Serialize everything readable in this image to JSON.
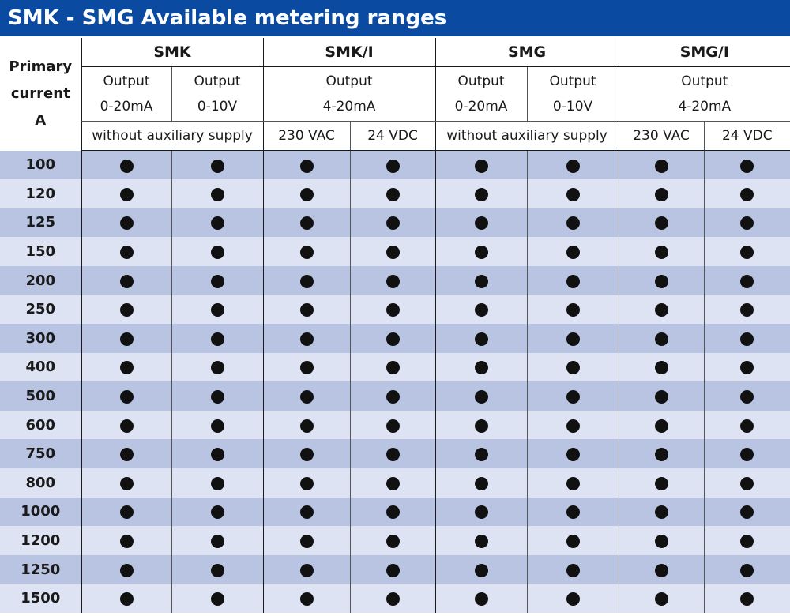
{
  "title": "SMK - SMG Available metering ranges",
  "header": {
    "primary_current": [
      "Primary",
      "current",
      "A"
    ],
    "groups": [
      "SMK",
      "SMK/I",
      "SMG",
      "SMG/I"
    ],
    "output_label": "Output",
    "smk_out1": "0-20mA",
    "smk_out2": "0-10V",
    "smki_out": "4-20mA",
    "smg_out1": "0-20mA",
    "smg_out2": "0-10V",
    "smgi_out": "4-20mA",
    "smk_supply": "without auxiliary supply",
    "smki_supply1": "230 VAC",
    "smki_supply2": "24 VDC",
    "smg_supply": "without auxiliary supply",
    "smgi_supply1": "230 VAC",
    "smgi_supply2": "24 VDC"
  },
  "rows": [
    {
      "amp": "100"
    },
    {
      "amp": "120"
    },
    {
      "amp": "125"
    },
    {
      "amp": "150"
    },
    {
      "amp": "200"
    },
    {
      "amp": "250"
    },
    {
      "amp": "300"
    },
    {
      "amp": "400"
    },
    {
      "amp": "500"
    },
    {
      "amp": "600"
    },
    {
      "amp": "750"
    },
    {
      "amp": "800"
    },
    {
      "amp": "1000"
    },
    {
      "amp": "1200"
    },
    {
      "amp": "1250"
    },
    {
      "amp": "1500"
    }
  ],
  "availability_symbol": "filled-circle"
}
